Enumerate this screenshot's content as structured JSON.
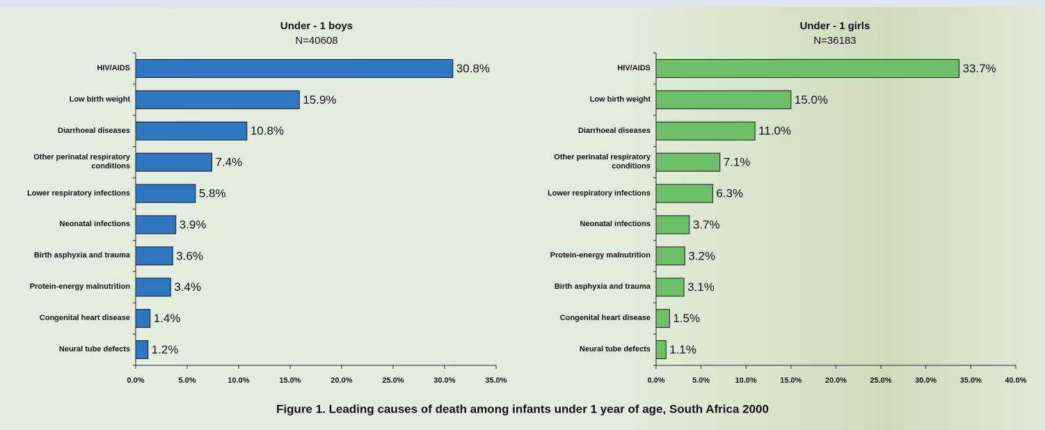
{
  "chart_data": [
    {
      "type": "bar",
      "orientation": "horizontal",
      "title": "Under - 1 boys",
      "subtitle": "N=40608",
      "categories": [
        "HIV/AIDS",
        "Low birth weight",
        "Diarrhoeal diseases",
        "Other perinatal respiratory conditions",
        "Lower respiratory infections",
        "Neonatal infections",
        "Birth asphyxia and trauma",
        "Protein-energy malnutrition",
        "Congenital heart disease",
        "Neural tube defects"
      ],
      "values": [
        30.8,
        15.9,
        10.8,
        7.4,
        5.8,
        3.9,
        3.6,
        3.4,
        1.4,
        1.2
      ],
      "value_labels": [
        "30.8%",
        "15.9%",
        "10.8%",
        "7.4%",
        "5.8%",
        "3.9%",
        "3.6%",
        "3.4%",
        "1.4%",
        "1.2%"
      ],
      "color": "#2e75c2",
      "xlim": [
        0,
        35
      ],
      "xticks": [
        {
          "value": 0,
          "label": "0.0%"
        },
        {
          "value": 5,
          "label": "5.0%"
        },
        {
          "value": 10,
          "label": "10.0%"
        },
        {
          "value": 15,
          "label": "15.0%"
        },
        {
          "value": 20,
          "label": "20.0%"
        },
        {
          "value": 25,
          "label": "25.0%"
        },
        {
          "value": 30,
          "label": "30.0%"
        },
        {
          "value": 35,
          "label": "35.0%"
        }
      ]
    },
    {
      "type": "bar",
      "orientation": "horizontal",
      "title": "Under - 1 girls",
      "subtitle": "N=36183",
      "categories": [
        "HIV/AIDS",
        "Low birth weight",
        "Diarrhoeal diseases",
        "Other perinatal respiratory conditions",
        "Lower respiratory infections",
        "Neonatal infections",
        "Protein-energy malnutrition",
        "Birth asphyxia and trauma",
        "Congenital heart disease",
        "Neural tube defects"
      ],
      "values": [
        33.7,
        15.0,
        11.0,
        7.1,
        6.3,
        3.7,
        3.2,
        3.1,
        1.5,
        1.1
      ],
      "value_labels": [
        "33.7%",
        "15.0%",
        "11.0%",
        "7.1%",
        "6.3%",
        "3.7%",
        "3.2%",
        "3.1%",
        "1.5%",
        "1.1%"
      ],
      "color": "#6cc068",
      "xlim": [
        0,
        40
      ],
      "xticks": [
        {
          "value": 0,
          "label": "0.0%"
        },
        {
          "value": 5,
          "label": "5.0%"
        },
        {
          "value": 10,
          "label": "10.0%"
        },
        {
          "value": 15,
          "label": "15.0%"
        },
        {
          "value": 20,
          "label": "20.0%"
        },
        {
          "value": 25,
          "label": "25.0%"
        },
        {
          "value": 30,
          "label": "30.0%"
        },
        {
          "value": 35,
          "label": "35.0%"
        },
        {
          "value": 40,
          "label": "40.0%"
        }
      ]
    }
  ],
  "caption": "Figure 1. Leading causes of death among infants under 1 year of age, South Africa 2000"
}
